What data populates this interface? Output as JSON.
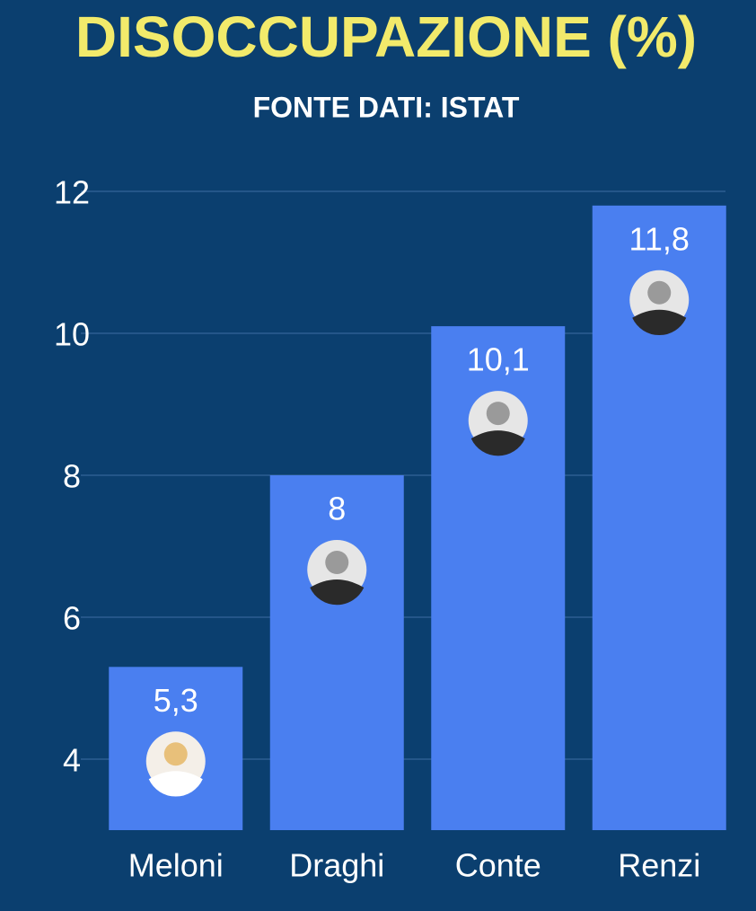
{
  "chart_data": {
    "type": "bar",
    "title": "DISOCCUPAZIONE (%)",
    "subtitle": "FONTE DATI: ISTAT",
    "categories": [
      "Meloni",
      "Draghi",
      "Conte",
      "Renzi"
    ],
    "values": [
      5.3,
      8,
      10.1,
      11.8
    ],
    "value_labels": [
      "5,3",
      "8",
      "10,1",
      "11,8"
    ],
    "color": "#4a7ff0",
    "ylim": [
      3,
      12
    ],
    "yticks": [
      4,
      6,
      8,
      10,
      12
    ],
    "grid": true
  }
}
